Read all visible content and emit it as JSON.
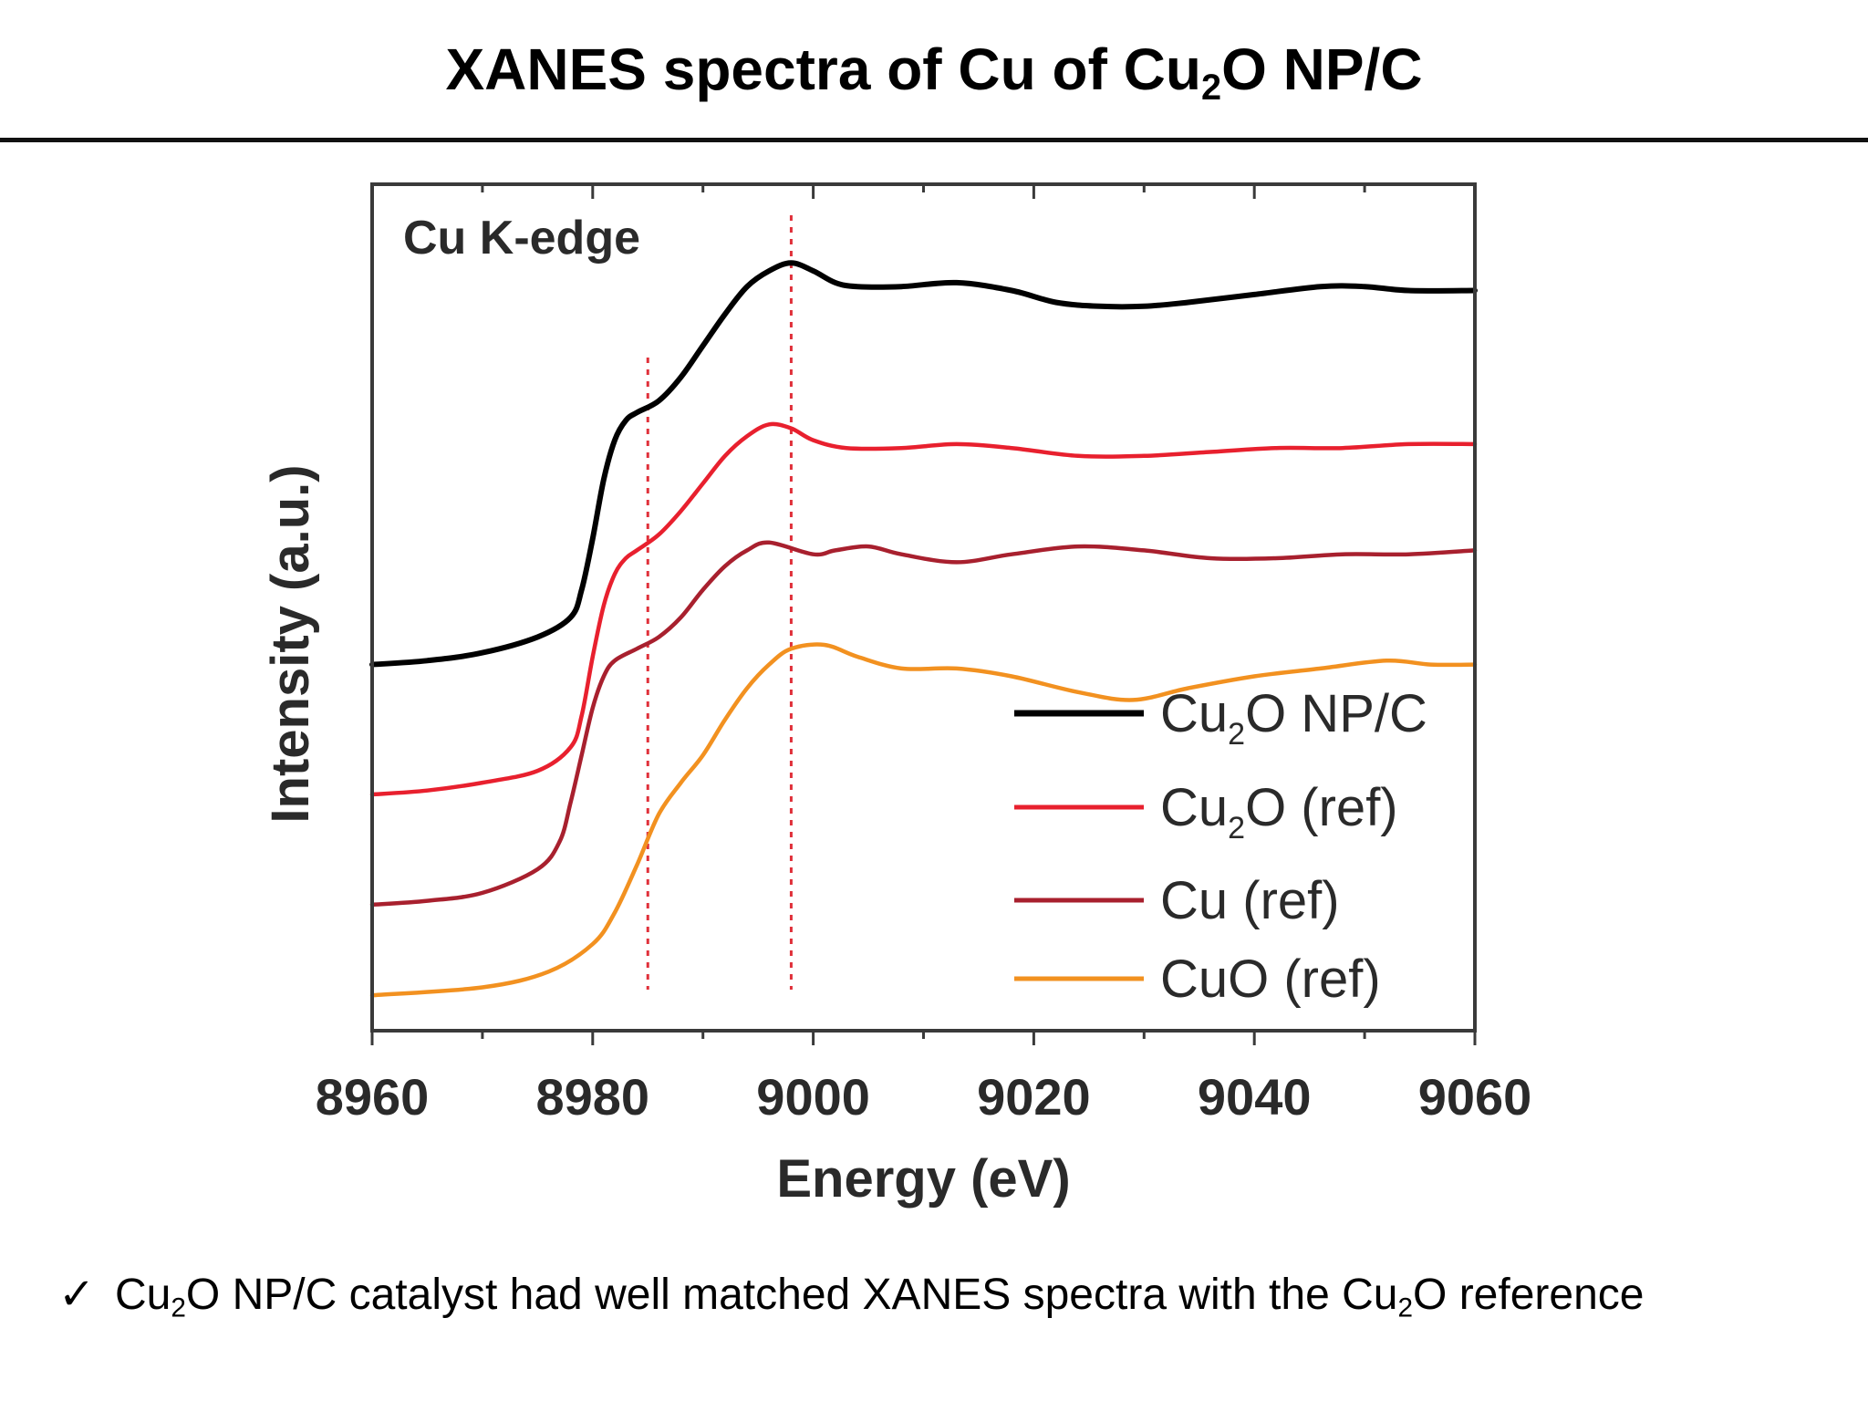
{
  "slide": {
    "title_pre": "XANES spectra of Cu of Cu",
    "title_sub": "2",
    "title_post": "O NP/C",
    "note_check": "✓",
    "note_pre": "Cu",
    "note_sub1": "2",
    "note_mid": "O NP/C catalyst had well matched XANES spectra with the Cu",
    "note_sub2": "2",
    "note_post": "O reference"
  },
  "chart_data": {
    "type": "line",
    "title": "",
    "annotation": "Cu K-edge",
    "xlabel": "Energy (eV)",
    "ylabel": "Intensity (a.u.)",
    "xlim": [
      8960,
      9060
    ],
    "ylim": [
      0,
      2.15
    ],
    "x_ticks": [
      "8960",
      "8980",
      "9000",
      "9020",
      "9040",
      "9060"
    ],
    "y_ticks_shown": false,
    "grid": false,
    "legend_position": "bottom-right",
    "reference_lines_x": [
      8985,
      8998
    ],
    "reference_line_color": "#e0303a",
    "series": [
      {
        "name": "Cu2O NP/C",
        "legend_main": "Cu",
        "legend_sub": "2",
        "legend_rest": "O NP/C",
        "color": "#000000",
        "x": [
          8960,
          8965,
          8970,
          8975,
          8978,
          8979,
          8980,
          8981,
          8982,
          8983,
          8984,
          8986,
          8988,
          8990,
          8992,
          8994,
          8996,
          8998,
          9000,
          9002,
          9004,
          9008,
          9013,
          9018,
          9022,
          9026,
          9030,
          9034,
          9040,
          9046,
          9050,
          9054,
          9060
        ],
        "y": [
          0.93,
          0.94,
          0.96,
          1.0,
          1.05,
          1.12,
          1.25,
          1.4,
          1.5,
          1.55,
          1.57,
          1.6,
          1.66,
          1.74,
          1.82,
          1.89,
          1.93,
          1.95,
          1.93,
          1.9,
          1.89,
          1.89,
          1.9,
          1.88,
          1.85,
          1.84,
          1.84,
          1.85,
          1.87,
          1.89,
          1.89,
          1.88,
          1.88
        ]
      },
      {
        "name": "Cu2O (ref)",
        "legend_main": "Cu",
        "legend_sub": "2",
        "legend_rest": "O (ref)",
        "color": "#e8202e",
        "x": [
          8960,
          8965,
          8970,
          8975,
          8978,
          8979,
          8980,
          8981,
          8982,
          8983,
          8984,
          8986,
          8988,
          8990,
          8992,
          8994,
          8996,
          8998,
          9000,
          9003,
          9008,
          9013,
          9018,
          9024,
          9030,
          9036,
          9042,
          9048,
          9054,
          9060
        ],
        "y": [
          0.6,
          0.61,
          0.63,
          0.66,
          0.72,
          0.8,
          0.95,
          1.08,
          1.16,
          1.2,
          1.22,
          1.26,
          1.32,
          1.39,
          1.46,
          1.51,
          1.54,
          1.53,
          1.5,
          1.48,
          1.48,
          1.49,
          1.48,
          1.46,
          1.46,
          1.47,
          1.48,
          1.48,
          1.49,
          1.49
        ]
      },
      {
        "name": "Cu (ref)",
        "legend_main": "Cu (ref)",
        "legend_sub": "",
        "legend_rest": "",
        "color": "#a8202e",
        "x": [
          8960,
          8965,
          8970,
          8975,
          8977,
          8978,
          8979,
          8980,
          8981,
          8982,
          8984,
          8986,
          8988,
          8990,
          8992,
          8994,
          8996,
          9000,
          9002,
          9005,
          9008,
          9013,
          9018,
          9024,
          9030,
          9036,
          9042,
          9048,
          9054,
          9060
        ],
        "y": [
          0.32,
          0.33,
          0.35,
          0.41,
          0.48,
          0.58,
          0.7,
          0.82,
          0.9,
          0.94,
          0.97,
          1.0,
          1.05,
          1.12,
          1.18,
          1.22,
          1.24,
          1.21,
          1.22,
          1.23,
          1.21,
          1.19,
          1.21,
          1.23,
          1.22,
          1.2,
          1.2,
          1.21,
          1.21,
          1.22
        ]
      },
      {
        "name": "CuO (ref)",
        "legend_main": "CuO (ref)",
        "legend_sub": "",
        "legend_rest": "",
        "color": "#f29120",
        "x": [
          8960,
          8970,
          8976,
          8980,
          8982,
          8984,
          8986,
          8988,
          8990,
          8992,
          8994,
          8996,
          8998,
          9001,
          9004,
          9008,
          9013,
          9018,
          9024,
          9029,
          9034,
          9040,
          9046,
          9052,
          9056,
          9060
        ],
        "y": [
          0.09,
          0.11,
          0.15,
          0.22,
          0.3,
          0.42,
          0.55,
          0.63,
          0.7,
          0.79,
          0.87,
          0.93,
          0.97,
          0.98,
          0.95,
          0.92,
          0.92,
          0.9,
          0.86,
          0.84,
          0.87,
          0.9,
          0.92,
          0.94,
          0.93,
          0.93
        ]
      }
    ]
  }
}
